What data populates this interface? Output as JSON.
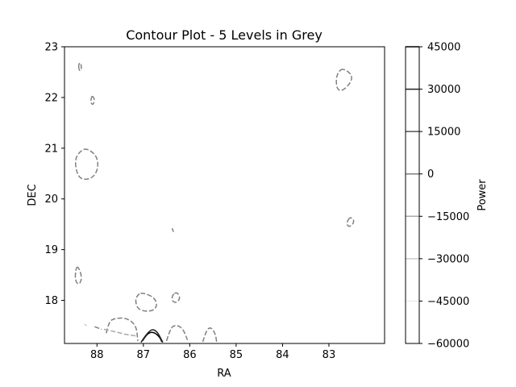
{
  "chart_data": {
    "type": "contour",
    "title": "Contour Plot - 5 Levels in Grey",
    "xlabel": "RA",
    "ylabel": "DEC",
    "xlim": [
      88.7,
      81.8
    ],
    "ylim": [
      17.15,
      23.0
    ],
    "x_axis_inverted": true,
    "xticks": [
      88,
      87,
      86,
      85,
      84,
      83
    ],
    "xtick_labels": [
      "88",
      "87",
      "86",
      "85",
      "84",
      "83"
    ],
    "yticks": [
      18,
      19,
      20,
      21,
      22,
      23
    ],
    "ytick_labels": [
      "18",
      "19",
      "20",
      "21",
      "22",
      "23"
    ],
    "grid": false,
    "colorbar": {
      "label": "Power",
      "min": -60000,
      "max": 45000,
      "ticks": [
        45000,
        30000,
        15000,
        0,
        -15000,
        -30000,
        -45000,
        -60000
      ],
      "tick_labels": [
        "45000",
        "30000",
        "15000",
        "0",
        "−15000",
        "−30000",
        "−45000",
        "−60000"
      ],
      "levels": [
        {
          "value": 45000,
          "color": "#000000"
        },
        {
          "value": 30000,
          "color": "#222222"
        },
        {
          "value": 15000,
          "color": "#555555"
        },
        {
          "value": 0,
          "color": "#808080"
        },
        {
          "value": -15000,
          "color": "#aaaaaa"
        },
        {
          "value": -30000,
          "color": "#cccccc"
        },
        {
          "value": -45000,
          "color": "#eeeeee"
        }
      ]
    },
    "contours": [
      {
        "level": 0,
        "closed": true,
        "points": [
          [
            88.4,
            22.65
          ],
          [
            88.35,
            22.7
          ],
          [
            88.33,
            22.55
          ],
          [
            88.38,
            22.52
          ]
        ]
      },
      {
        "level": 0,
        "closed": true,
        "points": [
          [
            88.1,
            22.03
          ],
          [
            88.05,
            21.97
          ],
          [
            88.08,
            21.85
          ],
          [
            88.14,
            21.9
          ],
          [
            88.12,
            22.0
          ]
        ]
      },
      {
        "level": 0,
        "closed": true,
        "points": [
          [
            88.22,
            21.0
          ],
          [
            88.0,
            20.85
          ],
          [
            87.97,
            20.6
          ],
          [
            88.1,
            20.4
          ],
          [
            88.35,
            20.38
          ],
          [
            88.45,
            20.55
          ],
          [
            88.47,
            20.8
          ],
          [
            88.35,
            20.95
          ]
        ]
      },
      {
        "level": 0,
        "closed": true,
        "points": [
          [
            88.42,
            18.68
          ],
          [
            88.35,
            18.55
          ],
          [
            88.33,
            18.4
          ],
          [
            88.4,
            18.3
          ],
          [
            88.47,
            18.4
          ],
          [
            88.46,
            18.6
          ]
        ]
      },
      {
        "level": 0,
        "closed": true,
        "points": [
          [
            82.7,
            22.58
          ],
          [
            82.5,
            22.45
          ],
          [
            82.52,
            22.3
          ],
          [
            82.7,
            22.13
          ],
          [
            82.82,
            22.15
          ],
          [
            82.85,
            22.35
          ],
          [
            82.8,
            22.5
          ]
        ]
      },
      {
        "level": 0,
        "closed": true,
        "points": [
          [
            82.55,
            19.65
          ],
          [
            82.45,
            19.58
          ],
          [
            82.5,
            19.48
          ],
          [
            82.58,
            19.45
          ],
          [
            82.62,
            19.52
          ]
        ]
      },
      {
        "level": 0,
        "closed": false,
        "points": [
          [
            86.38,
            19.42
          ],
          [
            86.35,
            19.35
          ]
        ]
      },
      {
        "level": 0,
        "closed": true,
        "points": [
          [
            87.0,
            18.15
          ],
          [
            86.75,
            18.05
          ],
          [
            86.7,
            17.88
          ],
          [
            86.82,
            17.78
          ],
          [
            87.1,
            17.8
          ],
          [
            87.18,
            17.98
          ],
          [
            87.12,
            18.12
          ]
        ]
      },
      {
        "level": 0,
        "closed": true,
        "points": [
          [
            86.28,
            18.17
          ],
          [
            86.2,
            18.05
          ],
          [
            86.28,
            17.95
          ],
          [
            86.38,
            17.98
          ],
          [
            86.38,
            18.1
          ]
        ]
      },
      {
        "level": 0,
        "closed": false,
        "points": [
          [
            87.8,
            17.35
          ],
          [
            87.75,
            17.58
          ],
          [
            87.6,
            17.65
          ],
          [
            87.35,
            17.65
          ],
          [
            87.15,
            17.5
          ],
          [
            87.12,
            17.2
          ]
        ]
      },
      {
        "level": 0,
        "closed": false,
        "points": [
          [
            86.5,
            17.2
          ],
          [
            86.42,
            17.45
          ],
          [
            86.3,
            17.52
          ],
          [
            86.15,
            17.45
          ],
          [
            86.05,
            17.22
          ]
        ]
      },
      {
        "level": 0,
        "closed": false,
        "points": [
          [
            85.72,
            17.18
          ],
          [
            85.65,
            17.4
          ],
          [
            85.55,
            17.48
          ],
          [
            85.45,
            17.35
          ],
          [
            85.42,
            17.18
          ]
        ]
      },
      {
        "level": 0,
        "closed": false,
        "points": [
          [
            88.05,
            17.48
          ],
          [
            87.9,
            17.43
          ]
        ]
      },
      {
        "level": -15000,
        "closed": false,
        "points": [
          [
            87.85,
            17.43
          ],
          [
            87.6,
            17.38
          ],
          [
            87.35,
            17.32
          ],
          [
            87.15,
            17.3
          ]
        ]
      },
      {
        "level": -30000,
        "closed": false,
        "points": [
          [
            88.27,
            17.53
          ],
          [
            88.22,
            17.5
          ]
        ]
      },
      {
        "level": 45000,
        "closed": false,
        "points": [
          [
            87.02,
            17.2
          ],
          [
            86.92,
            17.35
          ],
          [
            86.78,
            17.38
          ],
          [
            86.65,
            17.28
          ],
          [
            86.6,
            17.18
          ]
        ]
      },
      {
        "level": 30000,
        "closed": false,
        "points": [
          [
            87.05,
            17.17
          ],
          [
            86.88,
            17.42
          ],
          [
            86.72,
            17.42
          ],
          [
            86.58,
            17.17
          ]
        ]
      }
    ]
  }
}
